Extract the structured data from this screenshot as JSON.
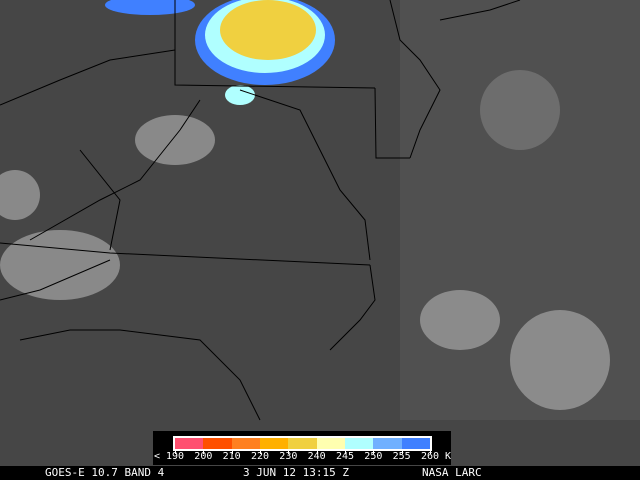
{
  "legend": {
    "colors": [
      "#ff5070",
      "#ff5000",
      "#ff8020",
      "#ffb000",
      "#f0d040",
      "#ffffb0",
      "#b0ffff",
      "#70b0ff",
      "#4080ff"
    ],
    "labels": [
      "< 190",
      "200",
      "210",
      "220",
      "230",
      "240",
      "245",
      "250",
      "255",
      "260 K"
    ]
  },
  "footer": {
    "satellite": "GOES-E 10.7 BAND 4",
    "datetime": "3 JUN 12 13:15 Z",
    "credit": "NASA LARC"
  },
  "colors": {
    "background": "#464646",
    "clouds": "#a0a0a0",
    "borders": "#000000"
  }
}
